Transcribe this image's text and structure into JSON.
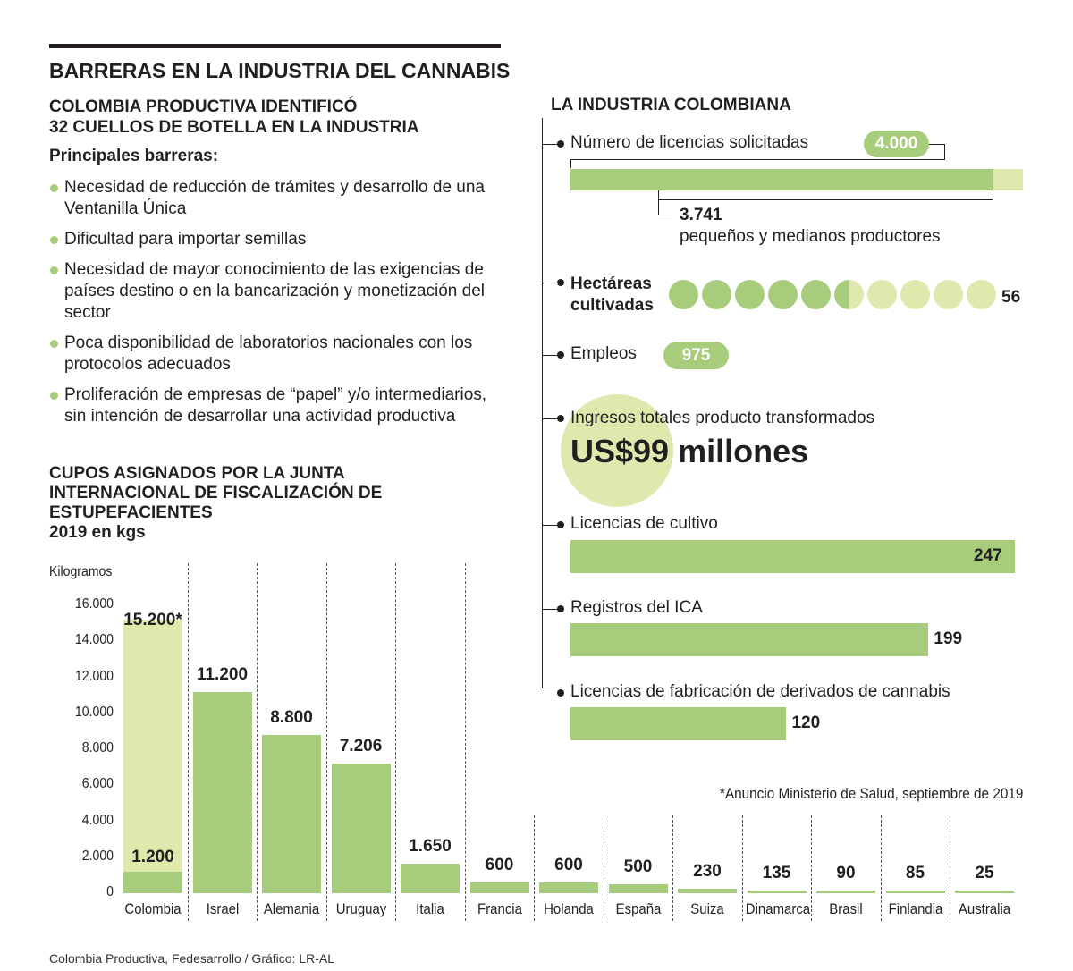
{
  "title": "BARRERAS EN LA INDUSTRIA DEL CANNABIS",
  "subtitle_line1": "COLOMBIA PRODUCTIVA IDENTIFICÓ",
  "subtitle_line2": "32 CUELLOS DE BOTELLA EN LA INDUSTRIA",
  "barriers_heading": "Principales barreras:",
  "barriers": [
    "Necesidad de reducción de trámites y desarrollo de una Ventanilla Única",
    "Dificultad para importar semillas",
    "Necesidad de mayor conocimiento de las exigencias de países destino o en la bancarización y monetización del sector",
    "Poca disponibilidad de laboratorios nacionales con los protocolos adecuados",
    "Proliferación de empresas de “papel” y/o intermediarios, sin intención de desarrollar una actividad productiva"
  ],
  "chart_heading": {
    "line1": "CUPOS ASIGNADOS POR LA JUNTA",
    "line2": "INTERNACIONAL DE FISCALIZACIÓN DE",
    "line3": "ESTUPEFACIENTES",
    "line4": "2019 en kgs"
  },
  "chart_data": {
    "type": "bar",
    "ylabel": "Kilogramos",
    "ylim": [
      0,
      16000
    ],
    "yticks": [
      "16.000",
      "14.000",
      "12.000",
      "10.000",
      "8.000",
      "6.000",
      "4.000",
      "2.000",
      "0"
    ],
    "ytick_values": [
      16000,
      14000,
      12000,
      10000,
      8000,
      6000,
      4000,
      2000,
      0
    ],
    "categories": [
      "Colombia",
      "Israel",
      "Alemania",
      "Uruguay",
      "Italia",
      "Francia",
      "Holanda",
      "España",
      "Suiza",
      "Dinamarca",
      "Brasil",
      "Finlandia",
      "Australia"
    ],
    "values": [
      1200,
      11200,
      8800,
      7206,
      1650,
      600,
      600,
      500,
      230,
      135,
      90,
      85,
      25
    ],
    "labels": [
      "1.200",
      "11.200",
      "8.800",
      "7.206",
      "1.650",
      "600",
      "600",
      "500",
      "230",
      "135",
      "90",
      "85",
      "25"
    ],
    "announced": {
      "category": "Colombia",
      "value": 15200,
      "label": "15.200*"
    },
    "colors": {
      "bar": "#a7cd7c",
      "announced": "#dfe9ae"
    }
  },
  "footnote": "*Anuncio Ministerio de Salud, septiembre de 2019",
  "source": "Colombia Productiva, Fedesarrollo  / Gráfico: LR-AL",
  "industry": {
    "heading": "LA INDUSTRIA COLOMBIANA",
    "licencias_solicitadas": {
      "label": "Número de licencias solicitadas",
      "total": 4000,
      "total_label": "4.000",
      "small": 3741,
      "small_label": "3.741",
      "small_desc": "pequeños y medianos productores"
    },
    "hectareas": {
      "label_line1": "Hectáreas",
      "label_line2": "cultivadas",
      "value": 56,
      "value_label": "56",
      "circles_total": 10,
      "circles_filled": 5.5
    },
    "empleos": {
      "label": "Empleos",
      "value_label": "975"
    },
    "ingresos": {
      "label": "Ingresos totales producto transformados",
      "value_label": "US$99 millones"
    },
    "bars": [
      {
        "label": "Licencias de cultivo",
        "value": 247,
        "value_label": "247"
      },
      {
        "label": "Registros del ICA",
        "value": 199,
        "value_label": "199"
      },
      {
        "label": "Licencias de fabricación de derivados de cannabis",
        "value": 120,
        "value_label": "120"
      }
    ]
  },
  "colors": {
    "green": "#a7cd7c",
    "light_green": "#dfe9ae",
    "dark": "#231f20"
  }
}
